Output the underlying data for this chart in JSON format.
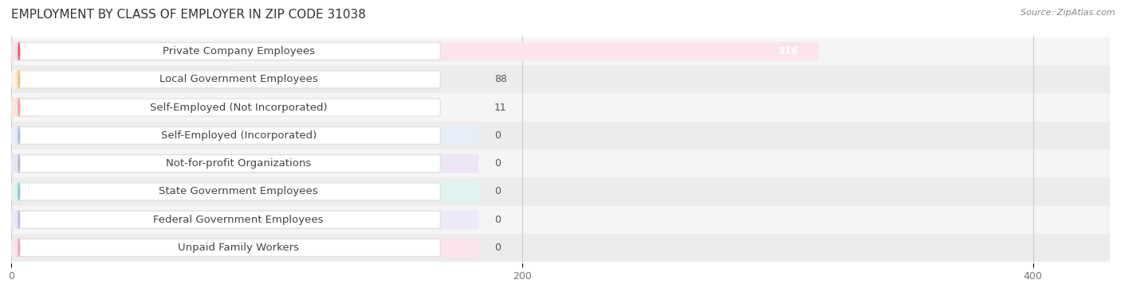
{
  "title": "EMPLOYMENT BY CLASS OF EMPLOYER IN ZIP CODE 31038",
  "source": "Source: ZipAtlas.com",
  "categories": [
    "Private Company Employees",
    "Local Government Employees",
    "Self-Employed (Not Incorporated)",
    "Self-Employed (Incorporated)",
    "Not-for-profit Organizations",
    "State Government Employees",
    "Federal Government Employees",
    "Unpaid Family Workers"
  ],
  "values": [
    316,
    88,
    11,
    0,
    0,
    0,
    0,
    0
  ],
  "bar_colors": [
    "#f26080",
    "#f9bc7a",
    "#f4a09a",
    "#a8bfe8",
    "#c4aedd",
    "#7dcec8",
    "#b8bce8",
    "#f4a0b8"
  ],
  "bar_light_colors": [
    "#fce4ec",
    "#fff3e0",
    "#fce4dc",
    "#e8eef8",
    "#ede4f4",
    "#e0f4f2",
    "#eaeaf8",
    "#fce4ec"
  ],
  "row_bg_even": "#f5f5f5",
  "row_bg_odd": "#ececec",
  "xlim_max": 430,
  "xticks": [
    0,
    200,
    400
  ],
  "title_fontsize": 11,
  "label_fontsize": 9.5,
  "value_fontsize": 9,
  "source_fontsize": 8,
  "background_color": "#ffffff",
  "grid_color": "#cccccc",
  "title_color": "#333333",
  "label_color": "#444444",
  "value_color": "#555555",
  "source_color": "#888888"
}
